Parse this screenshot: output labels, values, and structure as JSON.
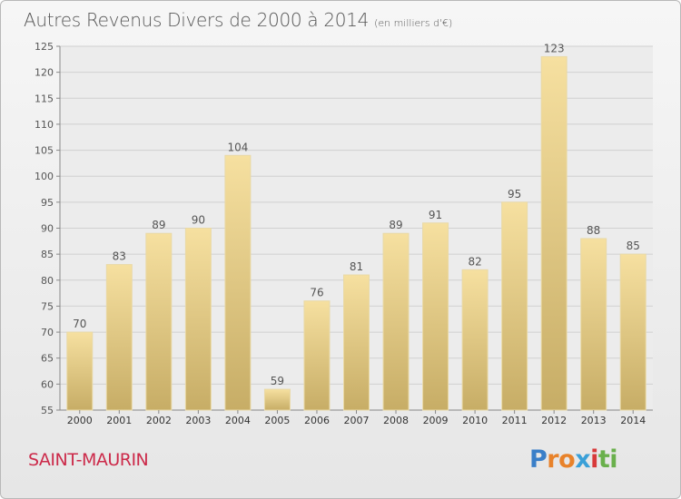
{
  "title": "Autres Revenus Divers de 2000 à 2014",
  "unit": "(en milliers d'€)",
  "commune": "SAINT-MAURIN",
  "logo": {
    "text": "Proxiti",
    "letters": [
      {
        "ch": "P",
        "color": "#3a7fc8"
      },
      {
        "ch": "r",
        "color": "#e8822a"
      },
      {
        "ch": "o",
        "color": "#e8822a"
      },
      {
        "ch": "x",
        "color": "#3aa0d8"
      },
      {
        "ch": "i",
        "color": "#d83a3a"
      },
      {
        "ch": "t",
        "color": "#6ab04c"
      },
      {
        "ch": "i",
        "color": "#6ab04c"
      }
    ]
  },
  "colors": {
    "bar_top": "#f6e0a0",
    "bar_bottom": "#c7ad66",
    "grid": "#d0d0d0",
    "text": "#555555"
  },
  "chart_data": {
    "type": "bar",
    "title": "Autres Revenus Divers de 2000 à 2014",
    "xlabel": "",
    "ylabel": "",
    "categories": [
      "2000",
      "2001",
      "2002",
      "2003",
      "2004",
      "2005",
      "2006",
      "2007",
      "2008",
      "2009",
      "2010",
      "2011",
      "2012",
      "2013",
      "2014"
    ],
    "values": [
      70,
      83,
      89,
      90,
      104,
      59,
      76,
      81,
      89,
      91,
      82,
      95,
      123,
      88,
      85
    ],
    "ylim": [
      55,
      125
    ],
    "yticks": [
      55,
      60,
      65,
      70,
      75,
      80,
      85,
      90,
      95,
      100,
      105,
      110,
      115,
      120,
      125
    ],
    "grid": true,
    "data_labels": true
  }
}
